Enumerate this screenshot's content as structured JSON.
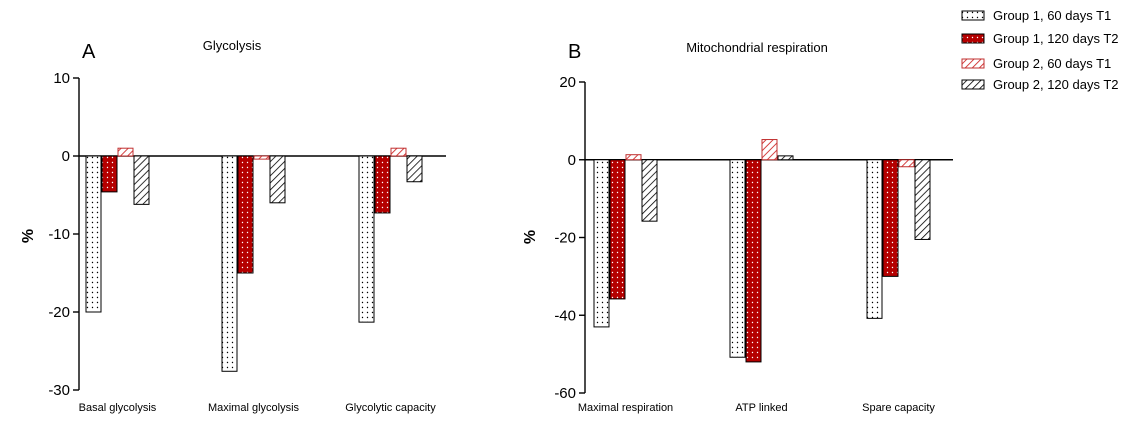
{
  "colors": {
    "axis": "#000000",
    "group1_t2_fill": "#b40000",
    "group2_t1_fill": "#f2b3b3"
  },
  "legend": {
    "position": "top-right",
    "entries": [
      {
        "label": "Group 1, 60 days T1",
        "pattern": "dots-white"
      },
      {
        "label": "Group 1, 120 days T2",
        "pattern": "dots-red"
      },
      {
        "label": "Group 2, 60 days T1",
        "pattern": "hatch-pink"
      },
      {
        "label": "Group 2, 120 days T2",
        "pattern": "hatch-black"
      }
    ]
  },
  "chart_data": [
    {
      "type": "bar",
      "panel_letter": "A",
      "title": "Glycolysis",
      "ylabel": "%",
      "ylim": [
        -30,
        10
      ],
      "yticks": [
        10,
        0,
        -10,
        -20,
        -30
      ],
      "categories": [
        "Basal glycolysis",
        "Maximal glycolysis",
        "Glycolytic capacity"
      ],
      "series": [
        {
          "name": "Group 1, 60 days T1",
          "values": [
            -20.0,
            -27.6,
            -21.3
          ]
        },
        {
          "name": "Group 1, 120 days T2",
          "values": [
            -4.6,
            -15.0,
            -7.3
          ]
        },
        {
          "name": "Group 2, 60 days T1",
          "values": [
            1.0,
            -0.4,
            1.0
          ]
        },
        {
          "name": "Group 2, 120 days T2",
          "values": [
            -6.2,
            -6.0,
            -3.3
          ]
        }
      ]
    },
    {
      "type": "bar",
      "panel_letter": "B",
      "title": "Mitochondrial respiration",
      "ylabel": "%",
      "ylim": [
        -60,
        20
      ],
      "yticks": [
        20,
        0,
        -20,
        -40,
        -60
      ],
      "categories": [
        "Maximal respiration",
        "ATP linked",
        "Spare capacity"
      ],
      "series": [
        {
          "name": "Group 1, 60 days T1",
          "values": [
            -43.0,
            -50.8,
            -40.8
          ]
        },
        {
          "name": "Group 1, 120 days T2",
          "values": [
            -35.8,
            -52.0,
            -30.0
          ]
        },
        {
          "name": "Group 2, 60 days T1",
          "values": [
            1.3,
            5.2,
            -1.8
          ]
        },
        {
          "name": "Group 2, 120 days T2",
          "values": [
            -15.8,
            1.0,
            -20.5
          ]
        }
      ]
    }
  ]
}
